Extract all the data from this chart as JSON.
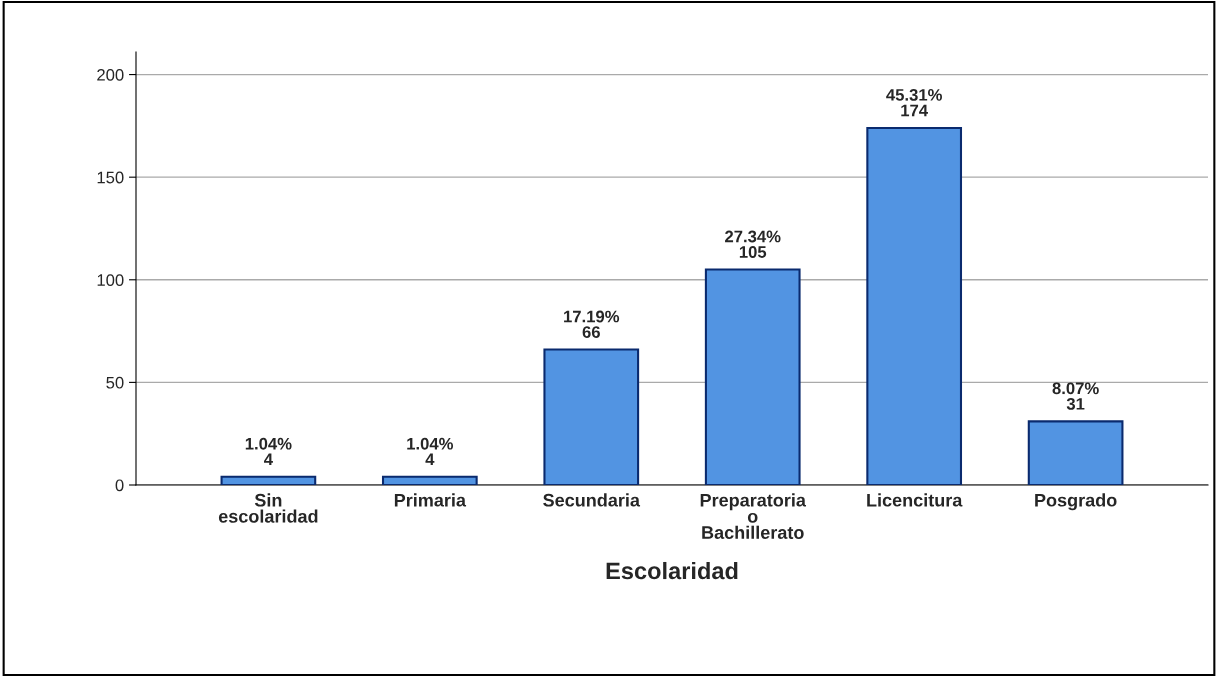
{
  "chart_data": {
    "type": "bar",
    "xlabel": "Escolaridad",
    "categories": [
      "Sin\nescolaridad",
      "Primaria",
      "Secundaria",
      "Preparatoria\no\nBachillerato",
      "Licencitura",
      "Posgrado"
    ],
    "values": [
      4,
      4,
      66,
      105,
      174,
      31
    ],
    "value_labels": [
      "1.04%\n4",
      "1.04%\n4",
      "17.19%\n66",
      "27.34%\n105",
      "45.31%\n174",
      "8.07%\n31"
    ],
    "color": "#5294e2",
    "ylim": [
      0,
      211
    ],
    "yticks": [
      0,
      50,
      100,
      150,
      200
    ],
    "grid": "y"
  }
}
